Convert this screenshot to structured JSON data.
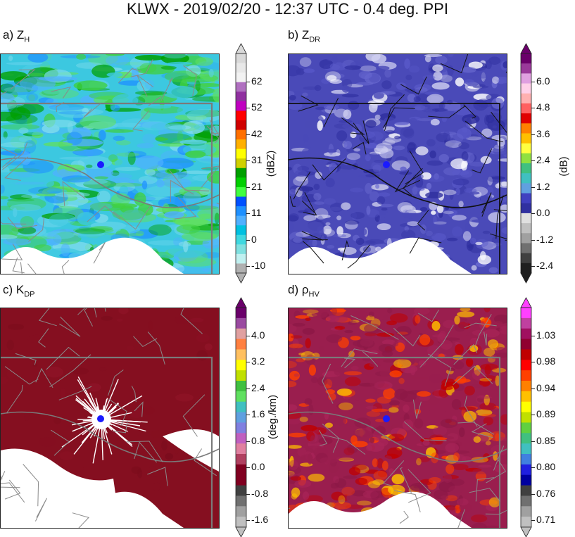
{
  "title": "KLWX - 2019/02/20 - 12:37 UTC - 0.4 deg. PPI",
  "colors": {
    "radar_site": "#1a1aff",
    "border": "#7a7a7a",
    "county": "#8a8a8a"
  },
  "chart_data": [
    {
      "type": "heatmap",
      "panel": "a",
      "label_prefix": "a) Z",
      "label_sub": "H",
      "unit": "(dBZ)",
      "colorbar_ticks": [
        "62",
        "52",
        "42",
        "31",
        "21",
        "11",
        "0",
        "-10"
      ],
      "colorbar_colors": [
        "#d9d9d9",
        "#e8e8e8",
        "#f2f2f2",
        "#b070c0",
        "#9030a0",
        "#c000c0",
        "#ff0000",
        "#d00000",
        "#ff7000",
        "#ffb000",
        "#ffff00",
        "#d0d000",
        "#00a000",
        "#00d000",
        "#40ff40",
        "#0050ff",
        "#1e90ff",
        "#50b0ff",
        "#00c0e0",
        "#40d8e0",
        "#80e0e0",
        "#c0f0f0",
        "#b0b0b0"
      ],
      "background": "#3cc8e0"
    },
    {
      "type": "heatmap",
      "panel": "b",
      "label_prefix": "b) Z",
      "label_sub": "DR",
      "unit": "(dB)",
      "colorbar_ticks": [
        "6.0",
        "4.8",
        "3.6",
        "2.4",
        "1.2",
        "0.0",
        "-1.2",
        "-2.4"
      ],
      "colorbar_colors": [
        "#6a006a",
        "#9a3a9a",
        "#e0a0e0",
        "#ffd0e8",
        "#ffb0b0",
        "#ff6060",
        "#e00000",
        "#ff8000",
        "#ffc000",
        "#ffff40",
        "#90e040",
        "#40c080",
        "#40c0c0",
        "#60a0e0",
        "#4040c0",
        "#3030a0",
        "#e0e0e0",
        "#c0c0c0",
        "#a0a0a0",
        "#707070",
        "#404040",
        "#202020"
      ],
      "background": "#4a4ab8"
    },
    {
      "type": "heatmap",
      "panel": "c",
      "label_prefix": "c) K",
      "label_sub": "DP",
      "unit": "(deg./km)",
      "colorbar_ticks": [
        "4.0",
        "3.2",
        "2.4",
        "1.6",
        "0.8",
        "0.0",
        "-0.8",
        "-1.6"
      ],
      "colorbar_colors": [
        "#6a006a",
        "#9a4aa0",
        "#e0a0a0",
        "#ff8040",
        "#ffc060",
        "#ffff00",
        "#c0e000",
        "#40c040",
        "#60e060",
        "#40c0c0",
        "#60a0e0",
        "#8080e0",
        "#c060c0",
        "#e080a0",
        "#b04060",
        "#800020",
        "#800020",
        "#404040",
        "#707070",
        "#a0a0a0",
        "#c0c0c0"
      ],
      "background": "#850f20"
    },
    {
      "type": "heatmap",
      "panel": "d",
      "label_prefix": "d) ρ",
      "label_sub": "HV",
      "unit": "",
      "colorbar_ticks": [
        "1.03",
        "0.98",
        "0.94",
        "0.89",
        "0.85",
        "0.80",
        "0.76",
        "0.71"
      ],
      "colorbar_colors": [
        "#ff40ff",
        "#c040a0",
        "#a01060",
        "#900030",
        "#c00000",
        "#ff0000",
        "#ff4000",
        "#ff8000",
        "#ffc000",
        "#ffff00",
        "#c0e000",
        "#60d040",
        "#40c080",
        "#40c0c0",
        "#4080e0",
        "#2020e0",
        "#0000a0",
        "#404040",
        "#707070",
        "#a0a0a0",
        "#c0c0c0"
      ],
      "background": "#9a1e4e"
    }
  ]
}
